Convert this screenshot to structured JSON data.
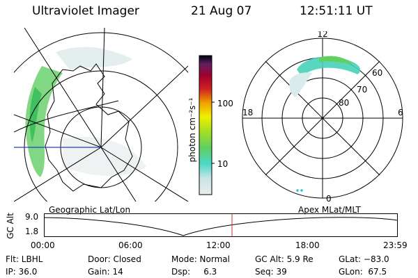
{
  "header": {
    "instrument": "Ultraviolet Imager",
    "date": "21 Aug 07",
    "time": "12:51:11 UT"
  },
  "colorbar": {
    "label": "photon cm⁻²s⁻¹",
    "ticks": [
      "100",
      "10"
    ],
    "colors": [
      "#e8eeee",
      "#c8e4e4",
      "#4cd8c8",
      "#60d060",
      "#a8e020",
      "#f0f000",
      "#f0a000",
      "#d02020",
      "#a00030",
      "#602060",
      "#000010"
    ]
  },
  "polar_plot": {
    "mlt_labels": {
      "top": "12",
      "left": "18",
      "right": "6",
      "bottom": "0"
    },
    "lat_labels": [
      "60",
      "70",
      "80"
    ]
  },
  "altitude_panel": {
    "ylabel": "GC Alt",
    "yticks": [
      "9.0",
      "1.8"
    ],
    "left_title": "Geographic Lat/Lon",
    "right_title": "Apex  MLat/MLT",
    "xticks": [
      "00:00",
      "06:00",
      "12:00",
      "18:00",
      "23:59"
    ],
    "marker_time": "12:51"
  },
  "footer": {
    "row1": {
      "flt": "Flt: LBHL",
      "door": "Door: Closed",
      "mode": "Mode: Normal",
      "gcalt": "GC Alt: 5.9 Re",
      "glat": "GLat: −83.0"
    },
    "row2": {
      "ip": "IP: 36.0",
      "gain": "Gain: 14",
      "dsp": "Dsp:     6.3",
      "seq": "Seq: 39",
      "glon": "GLon:  67.5"
    }
  }
}
